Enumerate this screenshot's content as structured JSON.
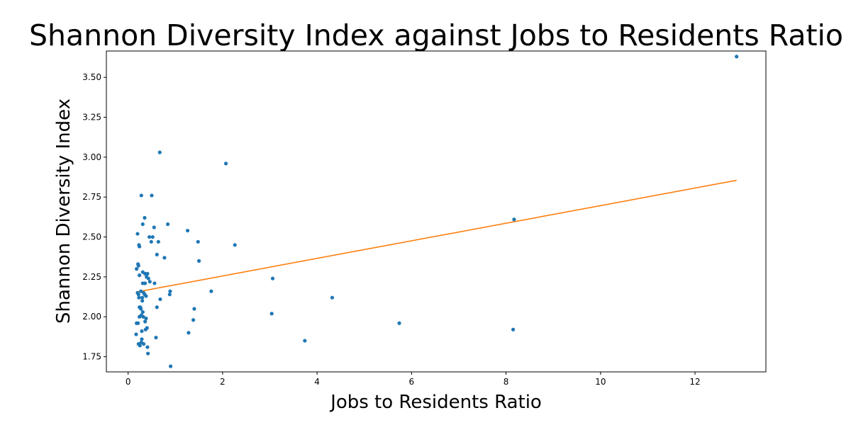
{
  "chart_data": {
    "type": "scatter",
    "title": "Shannon Diversity Index against Jobs to Residents Ratio",
    "xlabel": "Jobs to Residents Ratio",
    "ylabel": "Shannon Diversity Index",
    "xlim": [
      -0.46,
      13.5
    ],
    "ylim": [
      1.655,
      3.665
    ],
    "x_ticks": [
      0,
      2,
      4,
      6,
      8,
      10,
      12
    ],
    "y_ticks": [
      1.75,
      2.0,
      2.25,
      2.5,
      2.75,
      3.0,
      3.25,
      3.5
    ],
    "x_tick_labels": [
      "0",
      "2",
      "4",
      "6",
      "8",
      "10",
      "12"
    ],
    "y_tick_labels": [
      "1.75",
      "2.00",
      "2.25",
      "2.50",
      "2.75",
      "3.00",
      "3.25",
      "3.50"
    ],
    "grid": false,
    "colors": {
      "points": "#1f77b4",
      "trend": "#ff7f0e"
    },
    "series": [
      {
        "kind": "points",
        "points": [
          [
            0.17,
            1.89
          ],
          [
            0.18,
            2.3
          ],
          [
            0.18,
            1.96
          ],
          [
            0.2,
            2.52
          ],
          [
            0.2,
            2.15
          ],
          [
            0.21,
            2.33
          ],
          [
            0.21,
            1.96
          ],
          [
            0.22,
            2.32
          ],
          [
            0.22,
            2.14
          ],
          [
            0.22,
            1.83
          ],
          [
            0.23,
            2.45
          ],
          [
            0.23,
            2.12
          ],
          [
            0.24,
            2.44
          ],
          [
            0.24,
            2.26
          ],
          [
            0.24,
            2.06
          ],
          [
            0.24,
            2.0
          ],
          [
            0.25,
            1.82
          ],
          [
            0.26,
            2.06
          ],
          [
            0.27,
            2.16
          ],
          [
            0.27,
            2.05
          ],
          [
            0.28,
            2.76
          ],
          [
            0.28,
            2.01
          ],
          [
            0.28,
            1.84
          ],
          [
            0.29,
            1.86
          ],
          [
            0.29,
            1.91
          ],
          [
            0.3,
            2.12
          ],
          [
            0.3,
            2.1
          ],
          [
            0.31,
            2.58
          ],
          [
            0.31,
            2.28
          ],
          [
            0.31,
            2.21
          ],
          [
            0.31,
            2.03
          ],
          [
            0.32,
            2.0
          ],
          [
            0.33,
            2.15
          ],
          [
            0.33,
            1.83
          ],
          [
            0.35,
            2.62
          ],
          [
            0.35,
            2.14
          ],
          [
            0.36,
            2.27
          ],
          [
            0.36,
            2.21
          ],
          [
            0.36,
            1.97
          ],
          [
            0.37,
            1.92
          ],
          [
            0.38,
            1.99
          ],
          [
            0.38,
            2.13
          ],
          [
            0.39,
            2.25
          ],
          [
            0.4,
            1.93
          ],
          [
            0.41,
            2.27
          ],
          [
            0.41,
            1.81
          ],
          [
            0.42,
            1.77
          ],
          [
            0.43,
            2.24
          ],
          [
            0.45,
            2.5
          ],
          [
            0.46,
            2.22
          ],
          [
            0.49,
            2.47
          ],
          [
            0.5,
            2.76
          ],
          [
            0.52,
            2.5
          ],
          [
            0.55,
            2.56
          ],
          [
            0.56,
            2.21
          ],
          [
            0.59,
            1.87
          ],
          [
            0.61,
            2.06
          ],
          [
            0.61,
            2.39
          ],
          [
            0.64,
            2.47
          ],
          [
            0.67,
            3.03
          ],
          [
            0.68,
            2.11
          ],
          [
            0.77,
            2.37
          ],
          [
            0.84,
            2.58
          ],
          [
            0.88,
            2.14
          ],
          [
            0.89,
            2.16
          ],
          [
            0.9,
            1.69
          ],
          [
            1.26,
            2.54
          ],
          [
            1.28,
            1.9
          ],
          [
            1.38,
            1.98
          ],
          [
            1.4,
            2.05
          ],
          [
            1.48,
            2.47
          ],
          [
            1.5,
            2.35
          ],
          [
            1.76,
            2.16
          ],
          [
            2.07,
            2.96
          ],
          [
            2.26,
            2.45
          ],
          [
            3.04,
            2.02
          ],
          [
            3.06,
            2.24
          ],
          [
            3.74,
            1.85
          ],
          [
            4.32,
            2.12
          ],
          [
            5.74,
            1.96
          ],
          [
            8.15,
            1.92
          ],
          [
            8.17,
            2.61
          ],
          [
            12.88,
            3.63
          ]
        ]
      },
      {
        "kind": "trend",
        "points": [
          [
            0.17,
            2.155
          ],
          [
            12.88,
            2.855
          ]
        ]
      }
    ]
  }
}
